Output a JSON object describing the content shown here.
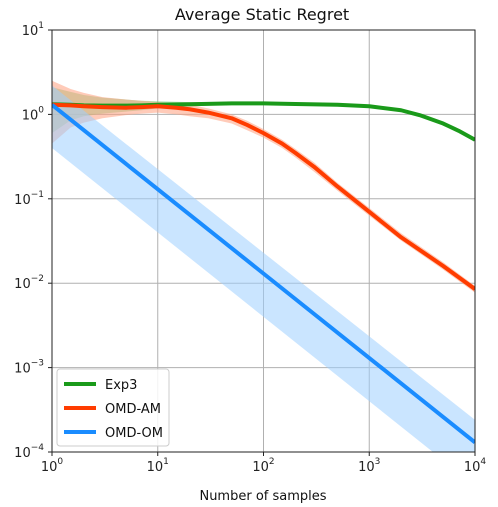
{
  "chart_data": {
    "type": "line",
    "title": "Average Static Regret",
    "xlabel": "Number of samples",
    "ylabel": "",
    "xscale": "log",
    "yscale": "log",
    "xlim": [
      1,
      10000
    ],
    "ylim": [
      0.0001,
      10
    ],
    "grid": true,
    "legend_position": "lower-left",
    "x_ticks": [
      {
        "value": 1,
        "base": "10",
        "exp": "0"
      },
      {
        "value": 10,
        "base": "10",
        "exp": "1"
      },
      {
        "value": 100,
        "base": "10",
        "exp": "2"
      },
      {
        "value": 1000,
        "base": "10",
        "exp": "3"
      },
      {
        "value": 10000,
        "base": "10",
        "exp": "4"
      }
    ],
    "y_ticks": [
      {
        "value": 10,
        "base": "10",
        "exp": "1"
      },
      {
        "value": 1,
        "base": "10",
        "exp": "0"
      },
      {
        "value": 0.1,
        "base": "10",
        "exp": "−1"
      },
      {
        "value": 0.01,
        "base": "10",
        "exp": "−2"
      },
      {
        "value": 0.001,
        "base": "10",
        "exp": "−3"
      },
      {
        "value": 0.0001,
        "base": "10",
        "exp": "−4"
      }
    ],
    "series": [
      {
        "name": "Exp3",
        "color": "#1a9a1a",
        "band_color": "#7cd07c",
        "x": [
          1,
          1.5,
          2,
          3,
          5,
          7,
          10,
          20,
          50,
          100,
          200,
          500,
          1000,
          2000,
          3000,
          5000,
          7000,
          10000
        ],
        "y": [
          1.32,
          1.3,
          1.28,
          1.27,
          1.27,
          1.28,
          1.3,
          1.32,
          1.35,
          1.35,
          1.33,
          1.3,
          1.25,
          1.12,
          0.98,
          0.78,
          0.64,
          0.5
        ],
        "lower": [
          0.6,
          0.85,
          0.95,
          1.02,
          1.08,
          1.12,
          1.18,
          1.25,
          1.3,
          1.32,
          1.31,
          1.28,
          1.23,
          1.1,
          0.96,
          0.77,
          0.63,
          0.49
        ],
        "upper": [
          2.1,
          1.85,
          1.7,
          1.58,
          1.5,
          1.45,
          1.43,
          1.4,
          1.4,
          1.38,
          1.36,
          1.32,
          1.27,
          1.14,
          1.0,
          0.8,
          0.65,
          0.51
        ]
      },
      {
        "name": "OMD-AM",
        "color": "#ff3c00",
        "band_color": "#ffa080",
        "x": [
          1,
          1.5,
          2,
          3,
          5,
          7,
          10,
          15,
          20,
          30,
          50,
          70,
          100,
          150,
          200,
          300,
          500,
          1000,
          2000,
          5000,
          10000
        ],
        "y": [
          1.3,
          1.28,
          1.25,
          1.22,
          1.2,
          1.22,
          1.25,
          1.2,
          1.15,
          1.05,
          0.9,
          0.75,
          0.6,
          0.45,
          0.35,
          0.24,
          0.14,
          0.07,
          0.035,
          0.016,
          0.0085
        ],
        "lower": [
          0.45,
          0.7,
          0.8,
          0.9,
          0.98,
          1.02,
          1.05,
          1.0,
          0.95,
          0.9,
          0.78,
          0.65,
          0.53,
          0.4,
          0.31,
          0.21,
          0.125,
          0.063,
          0.032,
          0.0145,
          0.0077
        ],
        "upper": [
          2.5,
          2.0,
          1.8,
          1.6,
          1.5,
          1.45,
          1.4,
          1.35,
          1.3,
          1.18,
          1.0,
          0.84,
          0.67,
          0.5,
          0.39,
          0.27,
          0.155,
          0.078,
          0.039,
          0.0177,
          0.0093
        ]
      },
      {
        "name": "OMD-OM",
        "color": "#1a8cff",
        "band_color": "#9fd0ff",
        "x": [
          1,
          10000
        ],
        "y": [
          1.3,
          0.00013
        ],
        "lower": [
          0.4,
          4e-05
        ],
        "upper": [
          2.2,
          0.00024
        ]
      }
    ]
  }
}
